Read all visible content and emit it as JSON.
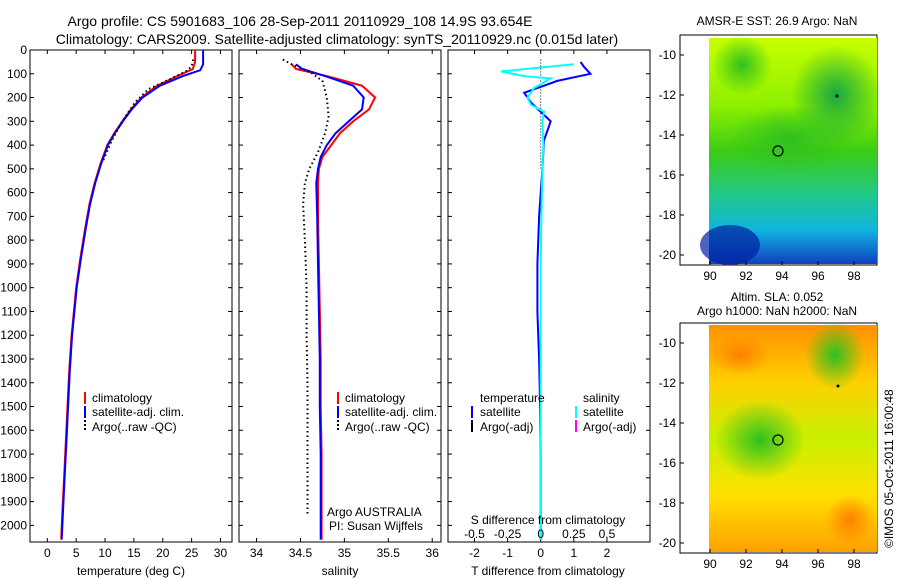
{
  "title_line1": "Argo profile: CS 5901683_106 28-Sep-2011 20110929_108 14.9S 93.654E",
  "title_line2": "Climatology: CARS2009. Satellite-adjusted climatology: synTS_20110929.nc (0.015d later)",
  "side_stamp": "©IMOS 05-Oct-2011 16:00:48",
  "colors": {
    "climatology": "#ff0000",
    "satellite": "#0000ff",
    "argo": "#000000",
    "s_satellite": "#00ffff",
    "s_argo": "#ff00ff"
  },
  "depth_ticks": [
    0,
    100,
    200,
    300,
    400,
    500,
    600,
    700,
    800,
    900,
    1000,
    1100,
    1200,
    1300,
    1400,
    1500,
    1600,
    1700,
    1800,
    1900,
    2000
  ],
  "panels": {
    "temperature": {
      "xlabel": "temperature (deg C)",
      "x_ticks": [
        "0",
        "5",
        "10",
        "15",
        "20",
        "25",
        "30"
      ],
      "xlim": [
        -3,
        32
      ],
      "legend": [
        "climatology",
        "satellite-adj. clim.",
        "Argo(..raw -QC)"
      ]
    },
    "salinity": {
      "xlabel": "salinity",
      "x_ticks": [
        "34",
        "34.5",
        "35",
        "35.5",
        "36"
      ],
      "xlim": [
        33.8,
        36.1
      ],
      "legend": [
        "climatology",
        "satellite-adj. clim.",
        "Argo(..raw -QC)"
      ],
      "note1": "Argo AUSTRALIA",
      "note2": "PI: Susan Wijffels"
    },
    "difference": {
      "xlabel": "T difference from climatology",
      "x_ticks": [
        "-2",
        "-1",
        "0",
        "1",
        "2"
      ],
      "xlim": [
        -2.8,
        3.3
      ],
      "top_label": "S difference from climatology",
      "top_ticks": [
        "-0.5",
        "-0.25",
        "0",
        "0.25",
        "0.5"
      ],
      "legend_t_title": "temperature",
      "legend_s_title": "salinity",
      "legend_t": [
        "satellite",
        "Argo(-adj)"
      ],
      "legend_s": [
        "satellite",
        "Argo(-adj)"
      ]
    },
    "sst_map": {
      "title": "AMSR-E SST: 26.9 Argo: NaN",
      "lat_ticks": [
        "-10",
        "-12",
        "-14",
        "-16",
        "-18",
        "-20"
      ],
      "lon_ticks": [
        "90",
        "92",
        "94",
        "96",
        "98"
      ]
    },
    "sla_map": {
      "title1": "Altim. SLA: 0.052",
      "title2": "Argo h1000: NaN h2000: NaN",
      "lat_ticks": [
        "-10",
        "-12",
        "-14",
        "-16",
        "-18",
        "-20"
      ],
      "lon_ticks": [
        "90",
        "92",
        "94",
        "96",
        "98"
      ]
    }
  },
  "chart_data": [
    {
      "type": "line",
      "title": "",
      "xlabel": "temperature (deg C)",
      "ylabel": "",
      "xlim": [
        -3,
        32
      ],
      "ylim": [
        2070,
        0
      ],
      "series": [
        {
          "name": "climatology",
          "points": [
            [
              25.6,
              0
            ],
            [
              25.6,
              50
            ],
            [
              25.2,
              80
            ],
            [
              22.5,
              110
            ],
            [
              19,
              150
            ],
            [
              16.3,
              200
            ],
            [
              14.5,
              250
            ],
            [
              13,
              300
            ],
            [
              11.6,
              350
            ],
            [
              10.4,
              400
            ],
            [
              9.2,
              480
            ],
            [
              8.2,
              560
            ],
            [
              7.3,
              650
            ],
            [
              6.5,
              760
            ],
            [
              5.7,
              880
            ],
            [
              5,
              1000
            ],
            [
              4.6,
              1100
            ],
            [
              4.2,
              1200
            ],
            [
              3.8,
              1350
            ],
            [
              3.5,
              1500
            ],
            [
              3.2,
              1650
            ],
            [
              2.9,
              1800
            ],
            [
              2.6,
              1950
            ],
            [
              2.4,
              2060
            ]
          ]
        },
        {
          "name": "satellite-adj. clim.",
          "points": [
            [
              27,
              0
            ],
            [
              27,
              60
            ],
            [
              26.5,
              85
            ],
            [
              23.5,
              110
            ],
            [
              19.5,
              150
            ],
            [
              16.5,
              200
            ],
            [
              14.6,
              250
            ],
            [
              13.1,
              300
            ],
            [
              11.7,
              350
            ],
            [
              10.5,
              400
            ],
            [
              9.3,
              480
            ],
            [
              8.3,
              560
            ],
            [
              7.4,
              650
            ],
            [
              6.6,
              760
            ],
            [
              5.8,
              880
            ],
            [
              5.1,
              1000
            ],
            [
              4.7,
              1100
            ],
            [
              4.3,
              1200
            ],
            [
              3.9,
              1350
            ],
            [
              3.6,
              1500
            ],
            [
              3.3,
              1650
            ],
            [
              3,
              1800
            ],
            [
              2.7,
              1950
            ],
            [
              2.5,
              2060
            ]
          ]
        },
        {
          "name": "Argo(..raw -QC)",
          "points": [
            [
              25.3,
              40
            ],
            [
              25,
              70
            ],
            [
              24,
              90
            ],
            [
              21.5,
              120
            ],
            [
              17.5,
              165
            ],
            [
              15.2,
              220
            ],
            [
              13.8,
              270
            ],
            [
              12.5,
              320
            ],
            [
              11.2,
              380
            ],
            [
              10.3,
              430
            ],
            [
              9.6,
              470
            ]
          ]
        }
      ]
    },
    {
      "type": "line",
      "title": "",
      "xlabel": "salinity",
      "ylabel": "",
      "xlim": [
        33.8,
        36.1
      ],
      "ylim": [
        2070,
        0
      ],
      "series": [
        {
          "name": "climatology",
          "points": [
            [
              34.4,
              60
            ],
            [
              34.45,
              80
            ],
            [
              34.8,
              110
            ],
            [
              35.2,
              150
            ],
            [
              35.35,
              200
            ],
            [
              35.28,
              250
            ],
            [
              35.1,
              300
            ],
            [
              34.95,
              350
            ],
            [
              34.85,
              400
            ],
            [
              34.75,
              450
            ],
            [
              34.71,
              500
            ],
            [
              34.7,
              560
            ],
            [
              34.7,
              700
            ],
            [
              34.71,
              900
            ],
            [
              34.72,
              1100
            ],
            [
              34.73,
              1300
            ],
            [
              34.73,
              1500
            ],
            [
              34.74,
              1700
            ],
            [
              34.74,
              1900
            ],
            [
              34.74,
              2060
            ]
          ]
        },
        {
          "name": "satellite-adj. clim.",
          "points": [
            [
              34.45,
              60
            ],
            [
              34.52,
              80
            ],
            [
              34.78,
              110
            ],
            [
              35.1,
              150
            ],
            [
              35.22,
              200
            ],
            [
              35.2,
              250
            ],
            [
              35.05,
              300
            ],
            [
              34.9,
              350
            ],
            [
              34.8,
              400
            ],
            [
              34.73,
              450
            ],
            [
              34.7,
              500
            ],
            [
              34.68,
              560
            ],
            [
              34.69,
              700
            ],
            [
              34.7,
              900
            ],
            [
              34.71,
              1100
            ],
            [
              34.72,
              1300
            ],
            [
              34.72,
              1500
            ],
            [
              34.73,
              1700
            ],
            [
              34.73,
              1900
            ],
            [
              34.73,
              2060
            ]
          ]
        },
        {
          "name": "Argo(..raw -QC)",
          "points": [
            [
              34.3,
              40
            ],
            [
              34.4,
              60
            ],
            [
              34.6,
              90
            ],
            [
              34.75,
              130
            ],
            [
              34.8,
              200
            ],
            [
              34.82,
              280
            ],
            [
              34.78,
              350
            ],
            [
              34.7,
              430
            ],
            [
              34.6,
              500
            ],
            [
              34.55,
              560
            ],
            [
              34.53,
              650
            ],
            [
              34.55,
              800
            ],
            [
              34.57,
              1000
            ],
            [
              34.57,
              1200
            ],
            [
              34.58,
              1400
            ],
            [
              34.58,
              1600
            ],
            [
              34.58,
              1800
            ],
            [
              34.58,
              1950
            ]
          ]
        }
      ]
    },
    {
      "type": "line",
      "title": "",
      "xlabel": "T difference from climatology",
      "ylabel": "",
      "xlim": [
        -2.8,
        3.3
      ],
      "ylim": [
        2070,
        0
      ],
      "series": [
        {
          "name": "temperature satellite",
          "points": [
            [
              1.2,
              50
            ],
            [
              1.3,
              70
            ],
            [
              1.5,
              100
            ],
            [
              0.5,
              130
            ],
            [
              -0.5,
              180
            ],
            [
              -0.3,
              220
            ],
            [
              0.3,
              300
            ],
            [
              0.1,
              380
            ],
            [
              0.05,
              500
            ],
            [
              -0.05,
              700
            ],
            [
              -0.1,
              900
            ],
            [
              -0.1,
              1100
            ],
            [
              -0.05,
              1300
            ],
            [
              -0.02,
              1500
            ],
            [
              0,
              1700
            ],
            [
              0,
              1900
            ],
            [
              0,
              2060
            ]
          ]
        },
        {
          "name": "salinity satellite",
          "points": [
            [
              1,
              60
            ],
            [
              -1.2,
              90
            ],
            [
              -0.5,
              110
            ],
            [
              0.3,
              120
            ],
            [
              -0.2,
              160
            ],
            [
              -0.4,
              200
            ],
            [
              -0.3,
              230
            ],
            [
              0.1,
              260
            ],
            [
              0.05,
              300
            ],
            [
              0.08,
              400
            ],
            [
              0.05,
              500
            ],
            [
              0.02,
              700
            ],
            [
              0,
              900
            ],
            [
              0,
              1200
            ],
            [
              0,
              1500
            ],
            [
              0,
              1800
            ],
            [
              0,
              2060
            ]
          ]
        }
      ]
    }
  ]
}
